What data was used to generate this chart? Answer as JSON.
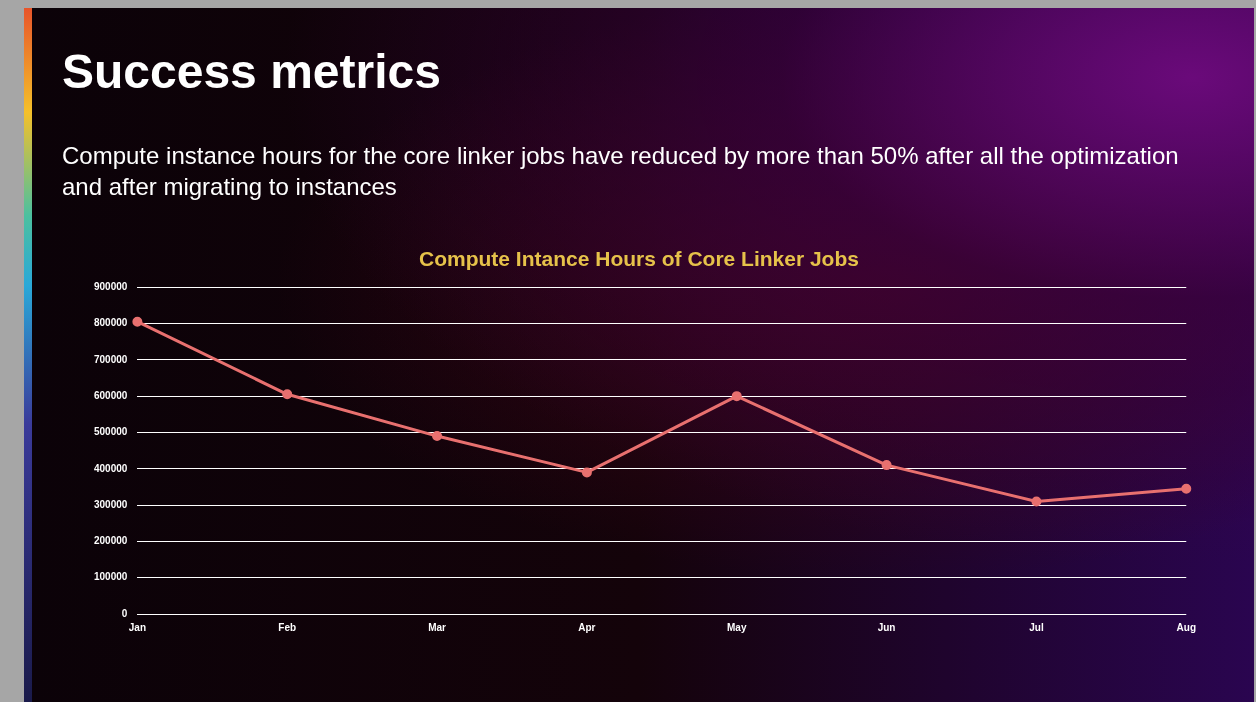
{
  "chart_data": {
    "type": "line",
    "title": "Compute Intance Hours of Core Linker Jobs",
    "categories": [
      "Jan",
      "Feb",
      "Mar",
      "Apr",
      "May",
      "Jun",
      "Jul",
      "Aug"
    ],
    "series": [
      {
        "color": "#e8706f",
        "values": [
          805000,
          605000,
          490000,
          390000,
          600000,
          410000,
          310000,
          345000
        ]
      }
    ],
    "ylim": [
      0,
      900000
    ],
    "yticks": [
      0,
      100000,
      200000,
      300000,
      400000,
      500000,
      600000,
      700000,
      800000,
      900000
    ],
    "grid": "y",
    "legend": false,
    "marker": "circle",
    "line_style": "solid",
    "annotations": [
      "Success metrics",
      "Compute instance hours for the core linker jobs have reduced by more than 50% after all the optimization and after migrating to instances"
    ]
  }
}
